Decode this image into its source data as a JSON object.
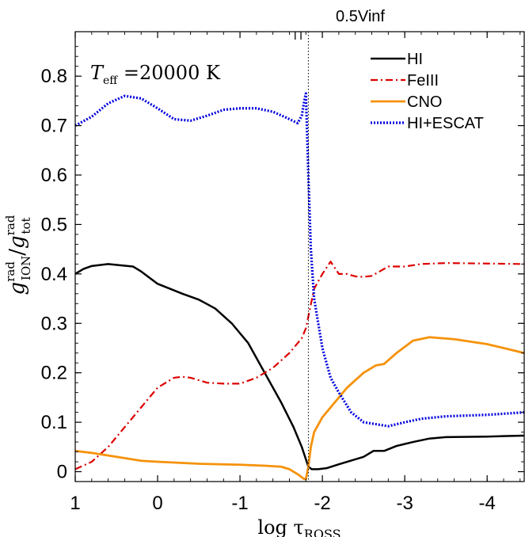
{
  "chart_data": {
    "type": "line",
    "title": "0.5Vinf",
    "annotation": "Teff =20000 K",
    "annotation_parts": {
      "sym": "T",
      "sub": "eff",
      "rest": " =20000 K"
    },
    "xlabel": "log τROSS",
    "xlabel_parts": {
      "pre": "log τ",
      "sub": "ROSS"
    },
    "ylabel": "gIONrad/gtotrad",
    "ylabel_parts": {
      "g1": "g",
      "sup1": "rad",
      "sub1": "ION",
      "slash": "/",
      "g2": "g",
      "sup2": "rad",
      "sub2": "tot"
    },
    "xlim": [
      1,
      -4.45
    ],
    "ylim": [
      -0.02,
      0.89
    ],
    "xticks": [
      1,
      0,
      -1,
      -2,
      -3,
      -4
    ],
    "xtick_labels": [
      "1",
      "0",
      "-1",
      "-2",
      "-3",
      "-4"
    ],
    "yticks": [
      0,
      0.1,
      0.2,
      0.3,
      0.4,
      0.5,
      0.6,
      0.7,
      0.8
    ],
    "ytick_labels": [
      "0",
      "0.1",
      "0.2",
      "0.3",
      "0.4",
      "0.5",
      "0.6",
      "0.7",
      "0.8"
    ],
    "vline_x": -1.83,
    "top_markers_x": [
      -1.67,
      -1.74
    ],
    "legend_position": "top-right",
    "series": [
      {
        "name": "HI",
        "color": "#000000",
        "dash": "solid",
        "x": [
          1,
          0.9,
          0.8,
          0.6,
          0.3,
          0.2,
          0,
          -0.3,
          -0.5,
          -0.7,
          -0.9,
          -1.1,
          -1.3,
          -1.5,
          -1.65,
          -1.75,
          -1.8,
          -1.83,
          -1.87,
          -1.95,
          -2.05,
          -2.2,
          -2.4,
          -2.5,
          -2.62,
          -2.75,
          -2.9,
          -3.1,
          -3.3,
          -3.5,
          -4,
          -4.45
        ],
        "y": [
          0.4,
          0.41,
          0.416,
          0.42,
          0.415,
          0.405,
          0.38,
          0.36,
          0.348,
          0.33,
          0.3,
          0.26,
          0.2,
          0.14,
          0.09,
          0.05,
          0.025,
          0.01,
          0.005,
          0.005,
          0.007,
          0.015,
          0.025,
          0.03,
          0.042,
          0.042,
          0.052,
          0.06,
          0.067,
          0.07,
          0.071,
          0.073
        ]
      },
      {
        "name": "FeIII",
        "color": "#dd0000",
        "dash": "dashdot",
        "x": [
          1,
          0.8,
          0.6,
          0.4,
          0.2,
          0,
          -0.2,
          -0.3,
          -0.4,
          -0.6,
          -0.8,
          -1,
          -1.2,
          -1.4,
          -1.6,
          -1.75,
          -1.8,
          -1.85,
          -1.9,
          -2,
          -2.1,
          -2.2,
          -2.3,
          -2.4,
          -2.5,
          -2.6,
          -2.8,
          -3,
          -3.2,
          -3.5,
          -4,
          -4.45
        ],
        "y": [
          0.005,
          0.02,
          0.05,
          0.09,
          0.13,
          0.17,
          0.19,
          0.192,
          0.19,
          0.18,
          0.178,
          0.178,
          0.19,
          0.21,
          0.24,
          0.27,
          0.29,
          0.33,
          0.37,
          0.4,
          0.425,
          0.4,
          0.4,
          0.395,
          0.394,
          0.396,
          0.415,
          0.415,
          0.42,
          0.422,
          0.421,
          0.42
        ]
      },
      {
        "name": "CNO",
        "color": "#f5920a",
        "dash": "solid",
        "x": [
          1,
          0.8,
          0.5,
          0.2,
          0,
          -0.5,
          -1,
          -1.3,
          -1.5,
          -1.6,
          -1.7,
          -1.78,
          -1.8,
          -1.83,
          -1.86,
          -1.9,
          -2,
          -2.1,
          -2.3,
          -2.5,
          -2.65,
          -2.75,
          -2.9,
          -3.1,
          -3.3,
          -3.6,
          -4,
          -4.45
        ],
        "y": [
          0.042,
          0.038,
          0.03,
          0.022,
          0.02,
          0.016,
          0.014,
          0.012,
          0.01,
          0.005,
          -0.005,
          -0.015,
          -0.015,
          0.01,
          0.05,
          0.08,
          0.11,
          0.13,
          0.17,
          0.2,
          0.215,
          0.218,
          0.24,
          0.265,
          0.272,
          0.268,
          0.258,
          0.24
        ]
      },
      {
        "name": "HI+ESCAT",
        "color": "#0000dd",
        "dash": "dotted",
        "x": [
          1,
          0.8,
          0.6,
          0.4,
          0.2,
          0,
          -0.2,
          -0.4,
          -0.6,
          -0.8,
          -1,
          -1.2,
          -1.4,
          -1.55,
          -1.7,
          -1.75,
          -1.78,
          -1.8,
          -1.83,
          -1.86,
          -1.9,
          -2,
          -2.1,
          -2.2,
          -2.35,
          -2.5,
          -2.8,
          -3,
          -3.2,
          -3.5,
          -4,
          -4.45
        ],
        "y": [
          0.7,
          0.718,
          0.745,
          0.76,
          0.755,
          0.735,
          0.713,
          0.71,
          0.72,
          0.732,
          0.735,
          0.735,
          0.728,
          0.717,
          0.705,
          0.72,
          0.75,
          0.765,
          0.6,
          0.45,
          0.35,
          0.25,
          0.19,
          0.16,
          0.12,
          0.1,
          0.092,
          0.1,
          0.107,
          0.112,
          0.115,
          0.12
        ]
      }
    ]
  }
}
